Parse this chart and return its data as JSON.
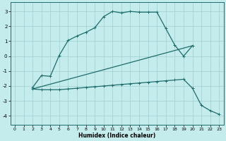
{
  "xlabel": "Humidex (Indice chaleur)",
  "bg_color": "#c5ecec",
  "grid_color": "#9ecece",
  "line_color": "#1e6b6b",
  "xlim": [
    -0.5,
    23.5
  ],
  "ylim": [
    -4.6,
    3.6
  ],
  "yticks": [
    -4,
    -3,
    -2,
    -1,
    0,
    1,
    2,
    3
  ],
  "xticks": [
    0,
    1,
    2,
    3,
    4,
    5,
    6,
    7,
    8,
    9,
    10,
    11,
    12,
    13,
    14,
    15,
    16,
    17,
    18,
    19,
    20,
    21,
    22,
    23
  ],
  "curve1_x": [
    2,
    3,
    4,
    5,
    6,
    7,
    8,
    9,
    10,
    11,
    12,
    13,
    14,
    15,
    16,
    17,
    18,
    19,
    20
  ],
  "curve1_y": [
    -2.1,
    -1.3,
    -1.35,
    0.05,
    1.05,
    1.35,
    1.6,
    1.9,
    2.65,
    3.0,
    2.9,
    3.0,
    2.95,
    2.95,
    2.95,
    1.85,
    0.75,
    0.0,
    0.7
  ],
  "curve2_x": [
    2,
    3,
    4,
    5,
    6,
    7,
    8,
    9,
    10,
    11,
    12,
    13,
    14,
    15,
    16,
    17,
    18,
    19,
    20,
    21,
    22,
    23
  ],
  "curve2_y": [
    -2.2,
    -2.25,
    -2.25,
    -2.25,
    -2.2,
    -2.15,
    -2.1,
    -2.05,
    -2.0,
    -1.95,
    -1.9,
    -1.85,
    -1.8,
    -1.75,
    -1.7,
    -1.65,
    -1.6,
    -1.55,
    -2.15,
    -3.3,
    -3.65,
    -3.9
  ],
  "line3_x": [
    2,
    20
  ],
  "line3_y": [
    -2.2,
    0.7
  ]
}
